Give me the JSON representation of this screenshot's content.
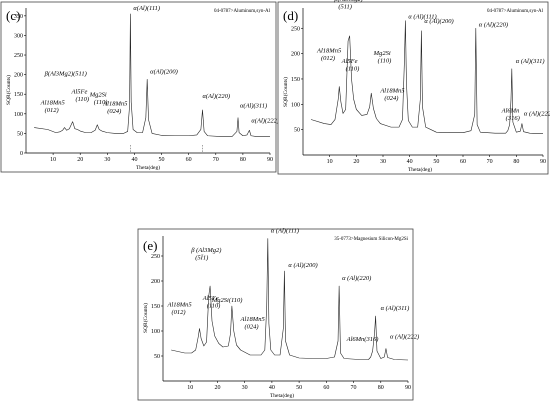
{
  "chart_data": [
    {
      "type": "line",
      "panel": "(c)",
      "reference": "04-0787>Aluminum,syn-Al",
      "xlabel": "Theta(deg)",
      "ylabel": "SQR(Counts)",
      "xlim": [
        0,
        90
      ],
      "ylim": [
        0,
        370
      ],
      "xticks": [
        "10",
        "20",
        "30",
        "40",
        "50",
        "60",
        "70",
        "80",
        "90"
      ],
      "yticks": [
        "0",
        "50",
        "100",
        "150",
        "200",
        "250",
        "300",
        "350"
      ],
      "x": [
        3,
        8,
        11,
        12.5,
        13.5,
        14.2,
        15,
        16,
        17.2,
        18,
        19,
        20,
        22,
        24,
        25.5,
        26.3,
        27,
        28,
        30,
        33,
        36,
        37.5,
        38.2,
        38.5,
        38.8,
        39.5,
        41,
        43,
        44.2,
        44.7,
        45.2,
        46.5,
        50,
        55,
        60,
        63,
        64.5,
        65.1,
        65.7,
        67,
        72,
        76,
        77.8,
        78.2,
        78.6,
        80,
        81.5,
        82.4,
        83,
        85,
        90
      ],
      "y": [
        65,
        60,
        52,
        54,
        58,
        65,
        58,
        62,
        80,
        62,
        60,
        56,
        52,
        52,
        58,
        72,
        60,
        56,
        52,
        50,
        50,
        55,
        120,
        355,
        130,
        60,
        52,
        52,
        90,
        188,
        85,
        50,
        45,
        44,
        44,
        46,
        60,
        110,
        55,
        44,
        42,
        42,
        55,
        90,
        52,
        44,
        46,
        58,
        44,
        42,
        42
      ],
      "annotations": [
        {
          "text": "Al18Mn5 (012)",
          "x": 13.5
        },
        {
          "text": "β(Al3Mg2)(511)",
          "x": 17.2
        },
        {
          "text": "Al5Fe (110)",
          "x": 19
        },
        {
          "text": "Mg2Si (110)",
          "x": 25
        },
        {
          "text": "Al18Mn5 (024)",
          "x": 27
        },
        {
          "text": "α(Al)(111)",
          "x": 38.5
        },
        {
          "text": "α(Al)(200)",
          "x": 44.7
        },
        {
          "text": "α(Al)(220)",
          "x": 65.1
        },
        {
          "text": "α(Al)(311)",
          "x": 78.2
        },
        {
          "text": "α(Al)(222)",
          "x": 82.4
        }
      ]
    },
    {
      "type": "line",
      "panel": "(d)",
      "reference": "04-0787>Aluminum,syn-Al",
      "xlabel": "Theta(deg)",
      "ylabel": "SQR(Counts)",
      "xlim": [
        0,
        90
      ],
      "ylim": [
        0,
        290
      ],
      "xticks": [
        "10",
        "20",
        "30",
        "40",
        "50",
        "60",
        "70",
        "80",
        "90"
      ],
      "yticks": [
        "50",
        "100",
        "150",
        "200",
        "250"
      ],
      "x": [
        3,
        8,
        10.5,
        12,
        13.2,
        13.6,
        14.2,
        15,
        16,
        16.9,
        17.5,
        18.2,
        19,
        20,
        22,
        24,
        25,
        25.6,
        26.4,
        27.5,
        29,
        33,
        36,
        37.3,
        38,
        38.4,
        38.8,
        39.5,
        41,
        43,
        44,
        44.4,
        44.8,
        46,
        50,
        55,
        60,
        63,
        64.4,
        64.8,
        65.3,
        66.5,
        72,
        76,
        76.8,
        77.5,
        78,
        78.3,
        78.7,
        80,
        81.5,
        82.1,
        82.7,
        85,
        90
      ],
      "y": [
        70,
        62,
        60,
        70,
        110,
        135,
        105,
        82,
        90,
        225,
        235,
        150,
        110,
        90,
        78,
        80,
        95,
        122,
        92,
        72,
        62,
        55,
        55,
        70,
        180,
        265,
        140,
        68,
        55,
        55,
        110,
        245,
        95,
        55,
        45,
        44,
        44,
        48,
        80,
        250,
        60,
        45,
        43,
        43,
        48,
        60,
        110,
        170,
        65,
        45,
        47,
        62,
        46,
        43,
        42
      ],
      "annotations": [
        {
          "text": "Al18Mn5 (012)",
          "x": 13.5
        },
        {
          "text": "β(Al3Mg2) (511)",
          "x": 17
        },
        {
          "text": "Al5Fe (110)",
          "x": 19
        },
        {
          "text": "Mg2Si (110)",
          "x": 25
        },
        {
          "text": "Al18Mn5 (024)",
          "x": 27.5
        },
        {
          "text": "α (Al)(111)",
          "x": 38.4
        },
        {
          "text": "α (Al)(200)",
          "x": 44.4
        },
        {
          "text": "α (Al)(220)",
          "x": 64.8
        },
        {
          "text": "Al6Mn (316)",
          "x": 77.5
        },
        {
          "text": "α (Al)(311)",
          "x": 78.3
        },
        {
          "text": "α (Al)(222)",
          "x": 82.1
        }
      ]
    },
    {
      "type": "line",
      "panel": "(e)",
      "reference": "35-0773>Magnesium Silicon-Mg2Si",
      "xlabel": "Theta(deg)",
      "ylabel": "SQR(Counts)",
      "xlim": [
        0,
        90
      ],
      "ylim": [
        0,
        290
      ],
      "xticks": [
        "10",
        "20",
        "30",
        "40",
        "50",
        "60",
        "70",
        "80",
        "90"
      ],
      "yticks": [
        "50",
        "100",
        "150",
        "200",
        "250"
      ],
      "x": [
        3,
        8,
        10.5,
        12,
        13,
        13.4,
        14,
        15,
        16,
        16.8,
        17.3,
        18,
        19,
        20.5,
        22,
        24,
        24.8,
        25.3,
        26,
        27,
        28.5,
        32,
        36,
        37.4,
        38.1,
        38.5,
        38.9,
        39.6,
        41,
        43,
        44.2,
        44.6,
        45,
        46.5,
        50,
        55,
        60,
        63,
        64.3,
        64.7,
        65.2,
        66.5,
        72,
        75.5,
        76.3,
        77,
        77.7,
        78.1,
        78.6,
        80,
        81.3,
        81.9,
        82.5,
        85,
        90
      ],
      "y": [
        62,
        56,
        56,
        62,
        90,
        105,
        85,
        70,
        78,
        170,
        190,
        120,
        90,
        75,
        68,
        70,
        95,
        150,
        100,
        72,
        62,
        52,
        52,
        62,
        150,
        285,
        115,
        62,
        52,
        52,
        105,
        220,
        80,
        52,
        46,
        45,
        45,
        48,
        80,
        190,
        56,
        45,
        43,
        43,
        48,
        60,
        95,
        130,
        60,
        45,
        48,
        65,
        47,
        43,
        42
      ],
      "annotations": [
        {
          "text": "Al18Mn5 (012)",
          "x": 13.4
        },
        {
          "text": "β (Al3Mg2) (5Ī1)",
          "x": 17
        },
        {
          "text": "Al5Fe (110)",
          "x": 19
        },
        {
          "text": "Mg2Si(110)",
          "x": 25.3
        },
        {
          "text": "Al18Mn5 (024)",
          "x": 27
        },
        {
          "text": "α (Al)(111)",
          "x": 38.5
        },
        {
          "text": "α (Al)(200)",
          "x": 44.6
        },
        {
          "text": "α (Al)(220)",
          "x": 64.7
        },
        {
          "text": "Al6Mn(316)",
          "x": 77
        },
        {
          "text": "α (Al)(311)",
          "x": 78.1
        },
        {
          "text": "α (Al)(222)",
          "x": 81.9
        }
      ]
    }
  ]
}
